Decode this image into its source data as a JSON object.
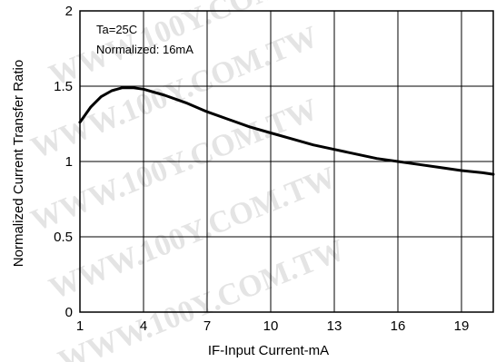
{
  "chart_data": {
    "type": "line",
    "title": "",
    "xlabel": "IF-Input Current-mA",
    "ylabel": "Normalized Current Transfer Ratio",
    "xlim": [
      1,
      20.5
    ],
    "ylim": [
      0,
      2
    ],
    "xticks": [
      "1",
      "4",
      "7",
      "10",
      "13",
      "16",
      "19"
    ],
    "yticks": [
      "0",
      "0.5",
      "1",
      "1.5",
      "2"
    ],
    "grid": true,
    "annotations": [
      "Ta=25C",
      "Normalized: 16mA"
    ],
    "watermark": "WWW.100Y.COM.TW",
    "line_color": "#000000",
    "series": [
      {
        "x": [
          1,
          1.5,
          2,
          2.5,
          3,
          3.5,
          4,
          5,
          6,
          7,
          8,
          9,
          10,
          11,
          12,
          13,
          14,
          15,
          16,
          17,
          18,
          19,
          20,
          20.5
        ],
        "y": [
          1.26,
          1.36,
          1.43,
          1.47,
          1.49,
          1.49,
          1.48,
          1.44,
          1.39,
          1.33,
          1.28,
          1.23,
          1.19,
          1.15,
          1.11,
          1.08,
          1.05,
          1.02,
          1.0,
          0.98,
          0.96,
          0.94,
          0.925,
          0.915
        ]
      }
    ]
  }
}
